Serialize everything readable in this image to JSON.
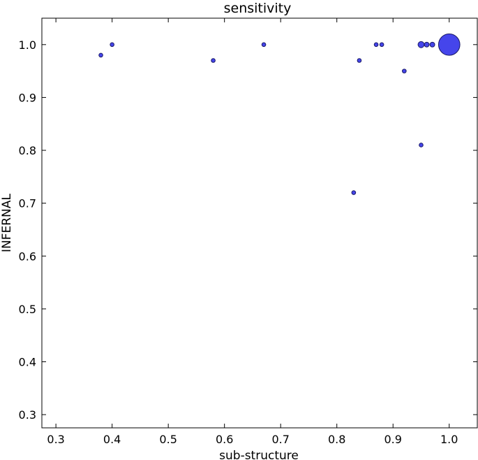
{
  "chart_data": {
    "type": "scatter",
    "title": "sensitivity",
    "xlabel": "sub-structure",
    "ylabel": "INFERNAL",
    "xlim": [
      0.275,
      1.05
    ],
    "ylim": [
      0.275,
      1.05
    ],
    "xticks": [
      "0.3",
      "0.4",
      "0.5",
      "0.6",
      "0.7",
      "0.8",
      "0.9",
      "1.0"
    ],
    "yticks": [
      "0.3",
      "0.4",
      "0.5",
      "0.6",
      "0.7",
      "0.8",
      "0.9",
      "1.0"
    ],
    "grid": false,
    "legend": "none",
    "marker_face_color": "#3b3bea",
    "marker_edge_color": "#1a1a66",
    "points": [
      {
        "x": 0.38,
        "y": 0.98,
        "weight": 1
      },
      {
        "x": 0.4,
        "y": 1.0,
        "weight": 1
      },
      {
        "x": 0.58,
        "y": 0.97,
        "weight": 1
      },
      {
        "x": 0.67,
        "y": 1.0,
        "weight": 1
      },
      {
        "x": 0.83,
        "y": 0.72,
        "weight": 1
      },
      {
        "x": 0.84,
        "y": 0.97,
        "weight": 1
      },
      {
        "x": 0.87,
        "y": 1.0,
        "weight": 1
      },
      {
        "x": 0.88,
        "y": 1.0,
        "weight": 1
      },
      {
        "x": 0.92,
        "y": 0.95,
        "weight": 1
      },
      {
        "x": 0.95,
        "y": 0.81,
        "weight": 1
      },
      {
        "x": 0.95,
        "y": 1.0,
        "weight": 2.5
      },
      {
        "x": 0.96,
        "y": 1.0,
        "weight": 1.5
      },
      {
        "x": 0.97,
        "y": 1.0,
        "weight": 1.5
      },
      {
        "x": 1.0,
        "y": 1.0,
        "weight": 30
      }
    ]
  }
}
